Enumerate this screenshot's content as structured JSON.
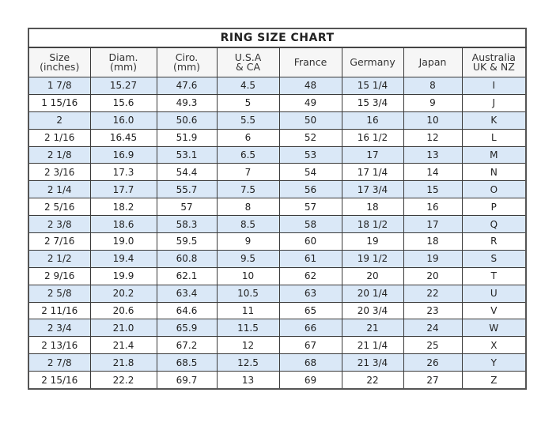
{
  "title": "RING  SIZE  CHART",
  "columns": [
    [
      "Size",
      "(inches)"
    ],
    [
      "Diam.",
      "(mm)"
    ],
    [
      "Ciro.",
      "(mm)"
    ],
    [
      "U.S.A",
      "& CA"
    ],
    [
      "France",
      ""
    ],
    [
      "Germany",
      ""
    ],
    [
      "Japan",
      ""
    ],
    [
      "Australia",
      "UK & NZ"
    ]
  ],
  "row_colors": {
    "highlight": "#dae8f7",
    "plain": "#ffffff"
  },
  "rows": [
    [
      "1 7/8",
      "15.27",
      "47.6",
      "4.5",
      "48",
      "15 1/4",
      "8",
      "I"
    ],
    [
      "1 15/16",
      "15.6",
      "49.3",
      "5",
      "49",
      "15 3/4",
      "9",
      "J"
    ],
    [
      "2",
      "16.0",
      "50.6",
      "5.5",
      "50",
      "16",
      "10",
      "K"
    ],
    [
      "2 1/16",
      "16.45",
      "51.9",
      "6",
      "52",
      "16 1/2",
      "12",
      "L"
    ],
    [
      "2 1/8",
      "16.9",
      "53.1",
      "6.5",
      "53",
      "17",
      "13",
      "M"
    ],
    [
      "2 3/16",
      "17.3",
      "54.4",
      "7",
      "54",
      "17 1/4",
      "14",
      "N"
    ],
    [
      "2 1/4",
      "17.7",
      "55.7",
      "7.5",
      "56",
      "17 3/4",
      "15",
      "O"
    ],
    [
      "2 5/16",
      "18.2",
      "57",
      "8",
      "57",
      "18",
      "16",
      "P"
    ],
    [
      "2 3/8",
      "18.6",
      "58.3",
      "8.5",
      "58",
      "18 1/2",
      "17",
      "Q"
    ],
    [
      "2 7/16",
      "19.0",
      "59.5",
      "9",
      "60",
      "19",
      "18",
      "R"
    ],
    [
      "2 1/2",
      "19.4",
      "60.8",
      "9.5",
      "61",
      "19 1/2",
      "19",
      "S"
    ],
    [
      "2 9/16",
      "19.9",
      "62.1",
      "10",
      "62",
      "20",
      "20",
      "T"
    ],
    [
      "2 5/8",
      "20.2",
      "63.4",
      "10.5",
      "63",
      "20 1/4",
      "22",
      "U"
    ],
    [
      "2 11/16",
      "20.6",
      "64.6",
      "11",
      "65",
      "20 3/4",
      "23",
      "V"
    ],
    [
      "2 3/4",
      "21.0",
      "65.9",
      "11.5",
      "66",
      "21",
      "24",
      "W"
    ],
    [
      "2 13/16",
      "21.4",
      "67.2",
      "12",
      "67",
      "21 1/4",
      "25",
      "X"
    ],
    [
      "2 7/8",
      "21.8",
      "68.5",
      "12.5",
      "68",
      "21 3/4",
      "26",
      "Y"
    ],
    [
      "2 15/16",
      "22.2",
      "69.7",
      "13",
      "69",
      "22",
      "27",
      "Z"
    ]
  ]
}
